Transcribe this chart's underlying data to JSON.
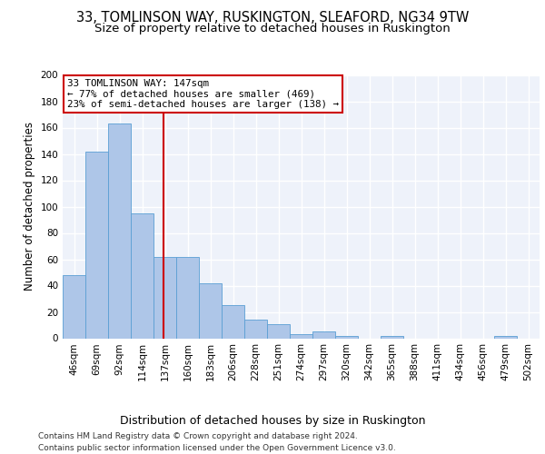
{
  "title1": "33, TOMLINSON WAY, RUSKINGTON, SLEAFORD, NG34 9TW",
  "title2": "Size of property relative to detached houses in Ruskington",
  "xlabel": "Distribution of detached houses by size in Ruskington",
  "ylabel": "Number of detached properties",
  "categories": [
    "46sqm",
    "69sqm",
    "92sqm",
    "114sqm",
    "137sqm",
    "160sqm",
    "183sqm",
    "206sqm",
    "228sqm",
    "251sqm",
    "274sqm",
    "297sqm",
    "320sqm",
    "342sqm",
    "365sqm",
    "388sqm",
    "411sqm",
    "434sqm",
    "456sqm",
    "479sqm",
    "502sqm"
  ],
  "values": [
    48,
    142,
    163,
    95,
    62,
    62,
    42,
    25,
    14,
    11,
    3,
    5,
    2,
    0,
    2,
    0,
    0,
    0,
    0,
    2,
    0
  ],
  "bar_color": "#aec6e8",
  "bar_edge_color": "#5a9fd4",
  "vline_color": "#cc0000",
  "annotation_text": "33 TOMLINSON WAY: 147sqm\n← 77% of detached houses are smaller (469)\n23% of semi-detached houses are larger (138) →",
  "annotation_box_color": "#ffffff",
  "annotation_box_edge": "#cc0000",
  "ylim": [
    0,
    200
  ],
  "yticks": [
    0,
    20,
    40,
    60,
    80,
    100,
    120,
    140,
    160,
    180,
    200
  ],
  "footnote1": "Contains HM Land Registry data © Crown copyright and database right 2024.",
  "footnote2": "Contains public sector information licensed under the Open Government Licence v3.0.",
  "bg_color": "#eef2fa",
  "grid_color": "#ffffff",
  "title1_fontsize": 10.5,
  "title2_fontsize": 9.5,
  "xlabel_fontsize": 9,
  "ylabel_fontsize": 8.5,
  "tick_fontsize": 7.5,
  "footnote_fontsize": 6.5,
  "annot_fontsize": 7.8
}
